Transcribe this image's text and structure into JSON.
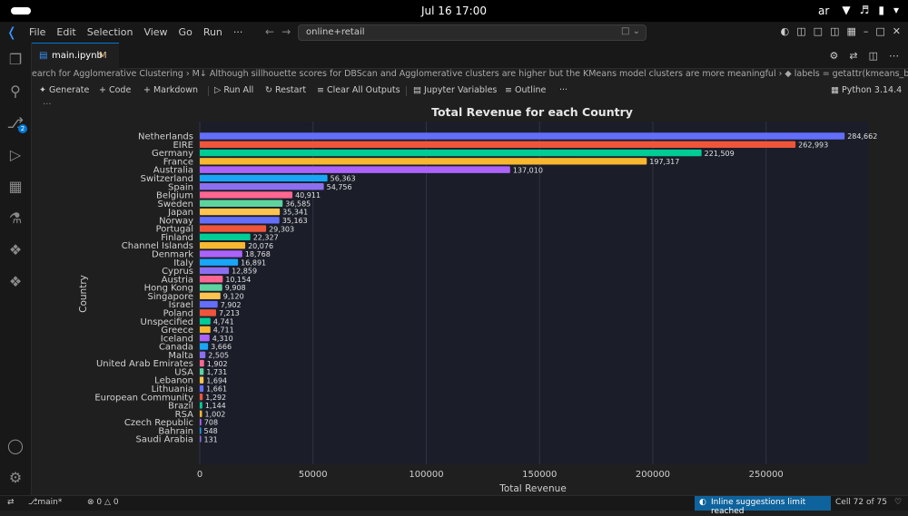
{
  "system": {
    "clock": "Jul 16  17:00",
    "lang": "ar"
  },
  "titlebar": {
    "menu": [
      "File",
      "Edit",
      "Selection",
      "View",
      "Go",
      "Run",
      "···"
    ],
    "search": "online+retail"
  },
  "tab": {
    "label": "main.ipynb",
    "modified": "M"
  },
  "breadcrumb": "earch for Agglomerative Clustering  ›  M↓ Although sillhouette scores for DBScan and Agglomerative clusters are higher but the KMeans model clusters are more meaningful  ›  ◆ labels = getattr(kmeans_best, \"labels_\", None)",
  "toolbar": {
    "generate": "Generate",
    "code": "Code",
    "markdown": "Markdown",
    "run_all": "Run All",
    "restart": "Restart",
    "clear_outputs": "Clear All Outputs",
    "jupyter_variables": "Jupyter Variables",
    "outline": "Outline",
    "more": "···",
    "kernel": "Python 3.14.4"
  },
  "cell_more": "···",
  "colors": {
    "accent": "#0078d4",
    "palette": [
      "#636efa",
      "#ef553b",
      "#00cc96",
      "#f7b731",
      "#ab63fa",
      "#19a6f8",
      "#8c6ff0",
      "#ff6692",
      "#5dd39e",
      "#fec44f"
    ]
  },
  "chart_data": {
    "type": "bar",
    "orientation": "horizontal",
    "title": "Total Revenue for each Country",
    "xlabel": "Total Revenue",
    "ylabel": "Country",
    "xlim": [
      0,
      295000
    ],
    "xticks": [
      0,
      50000,
      100000,
      150000,
      200000,
      250000
    ],
    "xtick_labels": [
      "0",
      "50000",
      "100000",
      "150000",
      "200000",
      "250000"
    ],
    "grid": true,
    "categories": [
      "Netherlands",
      "EIRE",
      "Germany",
      "France",
      "Australia",
      "Switzerland",
      "Spain",
      "Belgium",
      "Sweden",
      "Japan",
      "Norway",
      "Portugal",
      "Finland",
      "Channel Islands",
      "Denmark",
      "Italy",
      "Cyprus",
      "Austria",
      "Hong Kong",
      "Singapore",
      "Israel",
      "Poland",
      "Unspecified",
      "Greece",
      "Iceland",
      "Canada",
      "Malta",
      "United Arab Emirates",
      "USA",
      "Lebanon",
      "Lithuania",
      "European Community",
      "Brazil",
      "RSA",
      "Czech Republic",
      "Bahrain",
      "Saudi Arabia"
    ],
    "values": [
      284662,
      262993,
      221509,
      197317,
      137010,
      56363,
      54756,
      40911,
      36585,
      35341,
      35163,
      29303,
      22327,
      20076,
      18768,
      16891,
      12859,
      10154,
      9908,
      9120,
      7902,
      7213,
      4741,
      4711,
      4310,
      3666,
      2505,
      1902,
      1731,
      1694,
      1661,
      1292,
      1144,
      1002,
      708,
      548,
      131
    ],
    "value_labels": [
      "284,662",
      "262,993",
      "221,509",
      "197,317",
      "137,010",
      "56,363",
      "54,756",
      "40,911",
      "36,585",
      "35,341",
      "35,163",
      "29,303",
      "22,327",
      "20,076",
      "18,768",
      "16,891",
      "12,859",
      "10,154",
      "9,908",
      "9,120",
      "7,902",
      "7,213",
      "4,741",
      "4,711",
      "4,310",
      "3,666",
      "2,505",
      "1,902",
      "1,731",
      "1,694",
      "1,661",
      "1,292",
      "1,144",
      "1,002",
      "708",
      "548",
      "131"
    ]
  },
  "status": {
    "branch": "main*",
    "errors": "0",
    "warnings": "0",
    "inline_suggestions": "Inline suggestions limit reached",
    "cell": "Cell 72 of 75"
  }
}
